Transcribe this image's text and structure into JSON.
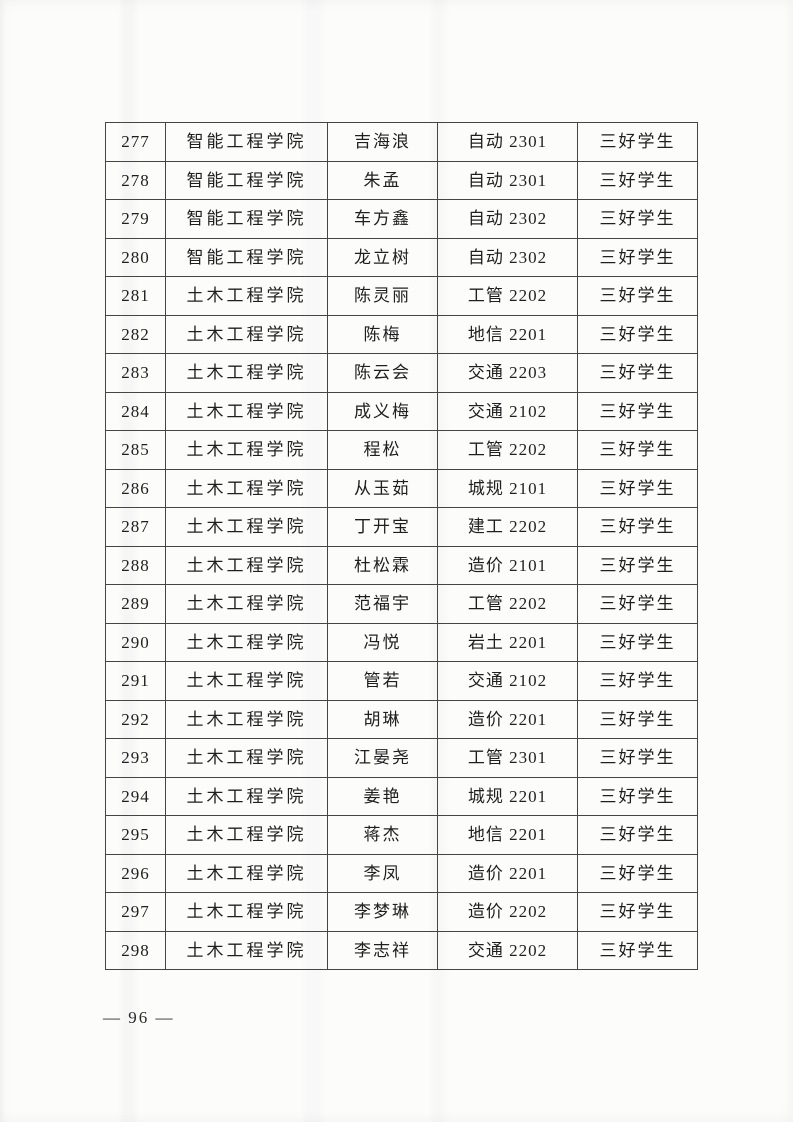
{
  "page": {
    "page_number": "96",
    "page_number_display": "— 96 —"
  },
  "table": {
    "columns": [
      "no",
      "college",
      "name",
      "class",
      "award"
    ],
    "rows": [
      [
        "277",
        "智能工程学院",
        "吉海浪",
        "自动 2301",
        "三好学生"
      ],
      [
        "278",
        "智能工程学院",
        "朱孟",
        "自动 2301",
        "三好学生"
      ],
      [
        "279",
        "智能工程学院",
        "车方鑫",
        "自动 2302",
        "三好学生"
      ],
      [
        "280",
        "智能工程学院",
        "龙立树",
        "自动 2302",
        "三好学生"
      ],
      [
        "281",
        "土木工程学院",
        "陈灵丽",
        "工管 2202",
        "三好学生"
      ],
      [
        "282",
        "土木工程学院",
        "陈梅",
        "地信 2201",
        "三好学生"
      ],
      [
        "283",
        "土木工程学院",
        "陈云会",
        "交通 2203",
        "三好学生"
      ],
      [
        "284",
        "土木工程学院",
        "成义梅",
        "交通 2102",
        "三好学生"
      ],
      [
        "285",
        "土木工程学院",
        "程松",
        "工管 2202",
        "三好学生"
      ],
      [
        "286",
        "土木工程学院",
        "从玉茹",
        "城规 2101",
        "三好学生"
      ],
      [
        "287",
        "土木工程学院",
        "丁开宝",
        "建工 2202",
        "三好学生"
      ],
      [
        "288",
        "土木工程学院",
        "杜松霖",
        "造价 2101",
        "三好学生"
      ],
      [
        "289",
        "土木工程学院",
        "范福宇",
        "工管 2202",
        "三好学生"
      ],
      [
        "290",
        "土木工程学院",
        "冯悦",
        "岩土 2201",
        "三好学生"
      ],
      [
        "291",
        "土木工程学院",
        "管若",
        "交通 2102",
        "三好学生"
      ],
      [
        "292",
        "土木工程学院",
        "胡琳",
        "造价 2201",
        "三好学生"
      ],
      [
        "293",
        "土木工程学院",
        "江晏尧",
        "工管 2301",
        "三好学生"
      ],
      [
        "294",
        "土木工程学院",
        "姜艳",
        "城规 2201",
        "三好学生"
      ],
      [
        "295",
        "土木工程学院",
        "蒋杰",
        "地信 2201",
        "三好学生"
      ],
      [
        "296",
        "土木工程学院",
        "李凤",
        "造价 2201",
        "三好学生"
      ],
      [
        "297",
        "土木工程学院",
        "李梦琳",
        "造价 2202",
        "三好学生"
      ],
      [
        "298",
        "土木工程学院",
        "李志祥",
        "交通 2202",
        "三好学生"
      ]
    ]
  }
}
